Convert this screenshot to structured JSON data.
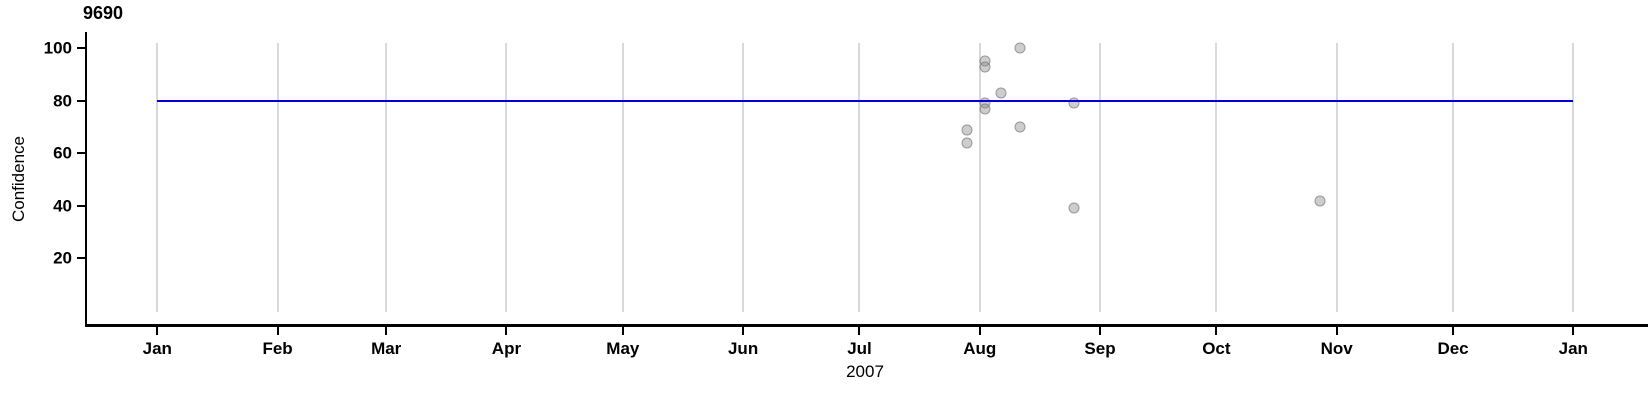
{
  "chart_data": {
    "type": "scatter",
    "title": "9690",
    "xlabel": "2007",
    "ylabel": "Confidence",
    "x_axis": {
      "unit": "days-of-year-2007",
      "domain_days": [
        0,
        365
      ],
      "tick_days": [
        0,
        31,
        59,
        90,
        120,
        151,
        181,
        212,
        243,
        273,
        304,
        334,
        365
      ],
      "tick_labels": [
        "Jan",
        "Feb",
        "Mar",
        "Apr",
        "May",
        "Jun",
        "Jul",
        "Aug",
        "Sep",
        "Oct",
        "Nov",
        "Dec",
        "Jan"
      ],
      "grid": true
    },
    "y_axis": {
      "tick_values": [
        100,
        80,
        60,
        40,
        20
      ],
      "tick_labels": [
        "100",
        "80",
        "60",
        "40",
        "20"
      ],
      "range": [
        0,
        103
      ],
      "grid": false
    },
    "reference_line": {
      "orientation": "horizontal",
      "value": 80,
      "color": "#0000D0"
    },
    "points": [
      {
        "date": "Jul 28",
        "day": 208.7,
        "confidence": 69
      },
      {
        "date": "Jul 28",
        "day": 208.7,
        "confidence": 64
      },
      {
        "date": "Aug 02",
        "day": 213.4,
        "confidence": 95
      },
      {
        "date": "Aug 02",
        "day": 213.4,
        "confidence": 93
      },
      {
        "date": "Aug 02",
        "day": 213.4,
        "confidence": 79
      },
      {
        "date": "Aug 02",
        "day": 213.4,
        "confidence": 77
      },
      {
        "date": "Aug 06",
        "day": 217.5,
        "confidence": 83
      },
      {
        "date": "Aug 11",
        "day": 222.4,
        "confidence": 100
      },
      {
        "date": "Aug 11",
        "day": 222.4,
        "confidence": 70
      },
      {
        "date": "Aug 25",
        "day": 236.4,
        "confidence": 79
      },
      {
        "date": "Aug 25",
        "day": 236.4,
        "confidence": 39
      },
      {
        "date": "Oct 28",
        "day": 299.6,
        "confidence": 42
      }
    ],
    "point_color_fill": "#d2d2d2",
    "point_color_stroke": "#ababab",
    "gridline_color": "#d9d9d9",
    "legend": false
  }
}
